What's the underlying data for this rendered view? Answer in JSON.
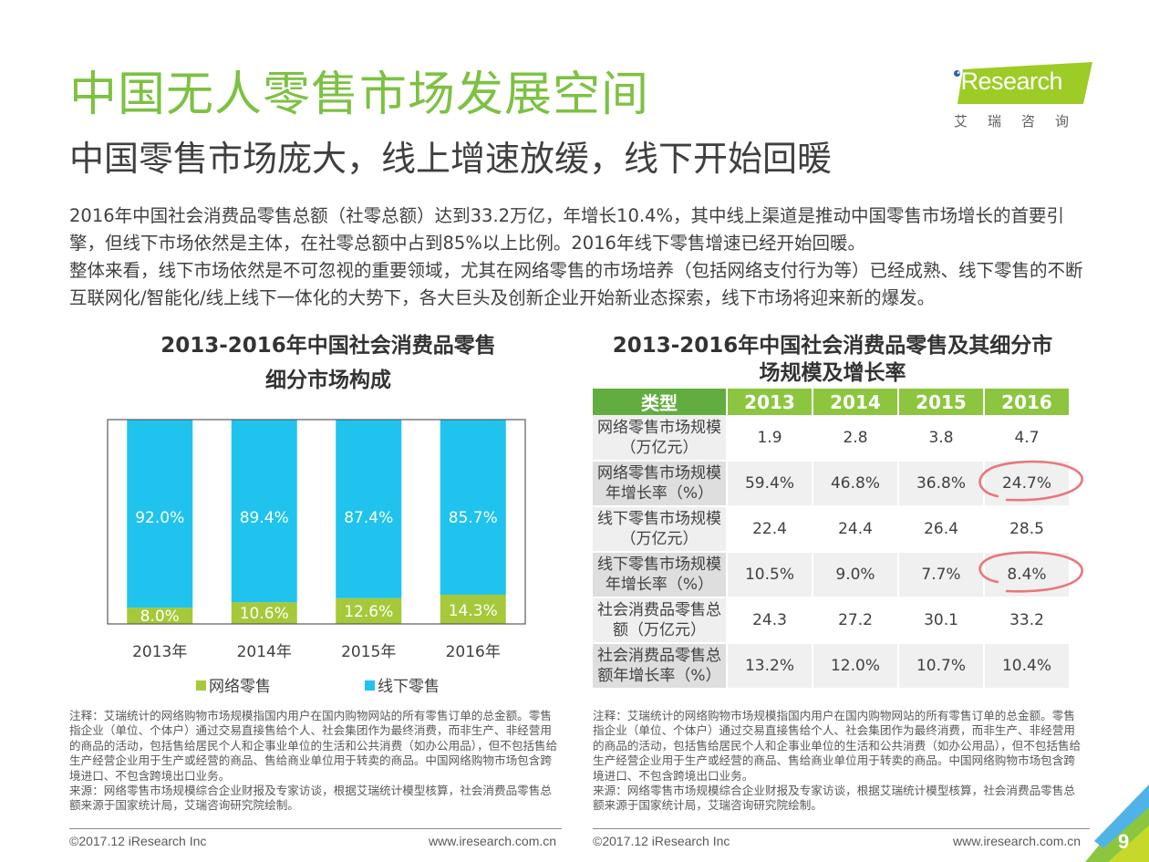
{
  "header": {
    "title": "中国无人零售市场发展空间",
    "subtitle": "中国零售市场庞大，线上增速放缓，线下开始回暖"
  },
  "logo": {
    "brand": "Research",
    "brand_cn": "艾瑞咨询",
    "colors": {
      "band": "#9ccc25",
      "dot": "#2a5fb0"
    }
  },
  "intro": {
    "paragraphs": [
      "2016年中国社会消费品零售总额（社零总额）达到33.2万亿，年增长10.4%，其中线上渠道是推动中国零售市场增长的首要引擎，但线下市场依然是主体，在社零总额中占到85%以上比例。2016年线下零售增速已经开始回暖。",
      "整体来看，线下市场依然是不可忽视的重要领域，尤其在网络零售的市场培养（包括网络支付行为等）已经成熟、线下零售的不断互联网化/智能化/线上线下一体化的大势下，各大巨头及创新企业开始新业态探索，线下市场将迎来新的爆发。"
    ]
  },
  "chart_data": [
    {
      "type": "bar",
      "stacked": true,
      "title": "2013-2016年中国社会消费品零售细分市场构成",
      "title_lines": [
        "2013-2016年中国社会消费品零售",
        "细分市场构成"
      ],
      "categories": [
        "2013年",
        "2014年",
        "2015年",
        "2016年"
      ],
      "series": [
        {
          "name": "网络零售",
          "color": "#a6c93a",
          "values": [
            8.0,
            10.6,
            12.6,
            14.3
          ],
          "labels": [
            "8.0%",
            "10.6%",
            "12.6%",
            "14.3%"
          ]
        },
        {
          "name": "线下零售",
          "color": "#1fc3ee",
          "values": [
            92.0,
            89.4,
            87.4,
            85.7
          ],
          "labels": [
            "92.0%",
            "89.4%",
            "87.4%",
            "85.7%"
          ]
        }
      ],
      "xlabel": "",
      "ylabel": "",
      "ylim": [
        0,
        100
      ],
      "unit": "%",
      "grid": false,
      "legend": "bottom"
    },
    {
      "type": "table",
      "title": "2013-2016年中国社会消费品零售及其细分市场规模及增长率",
      "title_lines": [
        "2013-2016年中国社会消费品零售及其细分市",
        "场规模及增长率"
      ],
      "columns": [
        "类型",
        "2013",
        "2014",
        "2015",
        "2016"
      ],
      "rows": [
        {
          "label": [
            "网络零售市场规模",
            "（万亿元）"
          ],
          "values": [
            "1.9",
            "2.8",
            "3.8",
            "4.7"
          ],
          "highlight_last": false
        },
        {
          "label": [
            "网络零售市场规模",
            "年增长率（%）"
          ],
          "values": [
            "59.4%",
            "46.8%",
            "36.8%",
            "24.7%"
          ],
          "highlight_last": true
        },
        {
          "label": [
            "线下零售市场规模",
            "（万亿元）"
          ],
          "values": [
            "22.4",
            "24.4",
            "26.4",
            "28.5"
          ],
          "highlight_last": false
        },
        {
          "label": [
            "线下零售市场规模",
            "年增长率（%）"
          ],
          "values": [
            "10.5%",
            "9.0%",
            "7.7%",
            "8.4%"
          ],
          "highlight_last": true
        },
        {
          "label": [
            "社会消费品零售总",
            "额（万亿元）"
          ],
          "values": [
            "24.3",
            "27.2",
            "30.1",
            "33.2"
          ],
          "highlight_last": false
        },
        {
          "label": [
            "社会消费品零售总",
            "额年增长率（%）"
          ],
          "values": [
            "13.2%",
            "12.0%",
            "10.7%",
            "10.4%"
          ],
          "highlight_last": false
        }
      ],
      "header_colors": {
        "type_col": "#62ad3f",
        "year_col": "#8cc63f"
      },
      "highlight_color": "#e8777e"
    }
  ],
  "notes": {
    "left": [
      "注释：艾瑞统计的网络购物市场规模指国内用户在国内购物网站的所有零售订单的总金额。零售指企业（单位、个体户）通过交易直接售给个人、社会集团作为最终消费，而非生产、非经营用的商品的活动，包括售给居民个人和企事业单位的生活和公共消费（如办公用品），但不包括售给生产经营企业用于生产或经营的商品、售给商业单位用于转卖的商品。中国网络购物市场包含跨境进口、不包含跨境出口业务。",
      "来源：网络零售市场规模综合企业财报及专家访谈，根据艾瑞统计模型核算，社会消费品零售总额来源于国家统计局，艾瑞咨询研究院绘制。"
    ],
    "right": [
      "注释：艾瑞统计的网络购物市场规模指国内用户在国内购物网站的所有零售订单的总金额。零售指企业（单位、个体户）通过交易直接售给个人、社会集团作为最终消费，而非生产、非经营用的商品的活动，包括售给居民个人和企事业单位的生活和公共消费（如办公用品），但不包括售给生产经营企业用于生产或经营的商品、售给商业单位用于转卖的商品。中国网络购物市场包含跨境进口、不包含跨境出口业务。",
      "来源：网络零售市场规模综合企业财报及专家访谈，根据艾瑞统计模型核算，社会消费品零售总额来源于国家统计局，艾瑞咨询研究院绘制。"
    ]
  },
  "footer": {
    "copyright": "©2017.12 iResearch Inc",
    "url": "www.iresearch.com.cn",
    "page_number": "9"
  }
}
